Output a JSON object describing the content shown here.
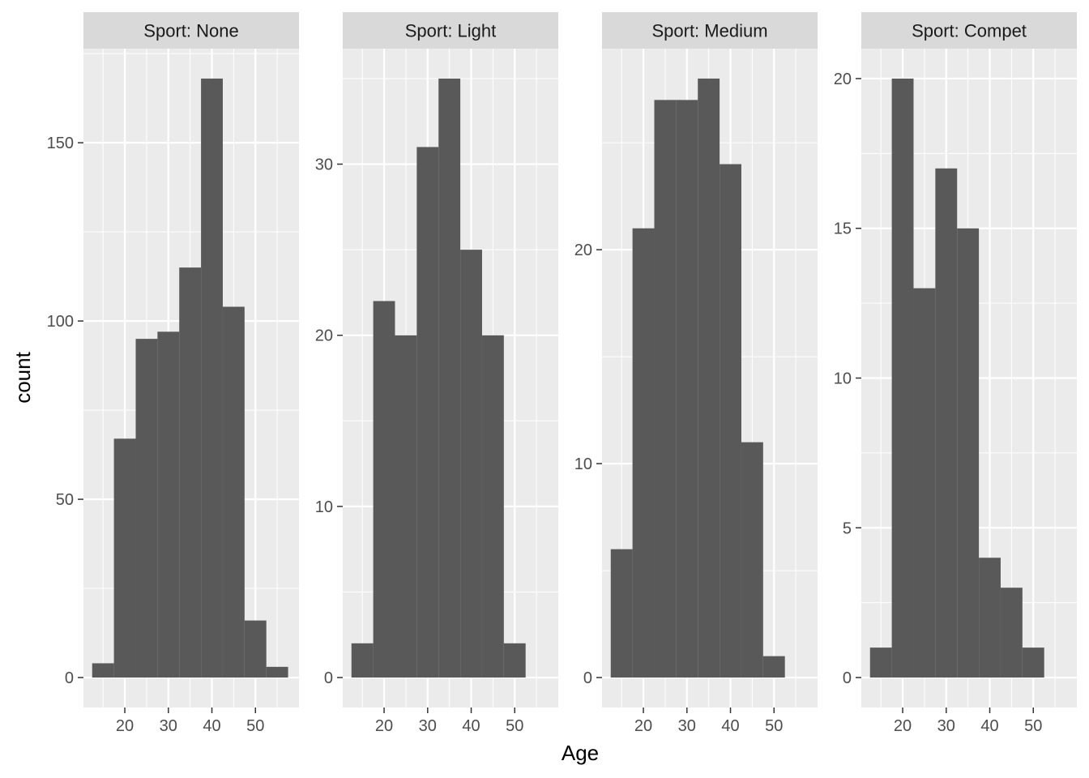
{
  "chart_data": {
    "type": "bar",
    "subtype": "histogram",
    "xlabel": "Age",
    "ylabel": "count",
    "bin_width": 5,
    "x_ticks": [
      20,
      30,
      40,
      50
    ],
    "x_range": [
      10.5,
      60
    ],
    "colors": {
      "bar": "#595959",
      "panel": "#ebebeb",
      "strip": "#d9d9d9",
      "grid": "#ffffff"
    },
    "panels": [
      {
        "strip_label": "Sport: None",
        "y_range": [
          -8.4,
          176.4
        ],
        "y_ticks": [
          0,
          50,
          100,
          150
        ],
        "bins": [
          12.5,
          17.5,
          22.5,
          27.5,
          32.5,
          37.5,
          42.5,
          47.5,
          52.5,
          57.5
        ],
        "counts": [
          4,
          67,
          95,
          97,
          115,
          168,
          104,
          16,
          3
        ]
      },
      {
        "strip_label": "Sport: Light",
        "y_range": [
          -1.75,
          36.75
        ],
        "y_ticks": [
          0,
          10,
          20,
          30
        ],
        "bins": [
          12.5,
          17.5,
          22.5,
          27.5,
          32.5,
          37.5,
          42.5,
          47.5,
          52.5
        ],
        "counts": [
          2,
          22,
          20,
          31,
          35,
          25,
          20,
          2
        ]
      },
      {
        "strip_label": "Sport: Medium",
        "y_range": [
          -1.4,
          29.4
        ],
        "y_ticks": [
          0,
          10,
          20
        ],
        "bins": [
          12.5,
          17.5,
          22.5,
          27.5,
          32.5,
          37.5,
          42.5,
          47.5,
          52.5
        ],
        "counts": [
          6,
          21,
          27,
          27,
          28,
          24,
          11,
          1
        ]
      },
      {
        "strip_label": "Sport: Compet",
        "y_range": [
          -1,
          21
        ],
        "y_ticks": [
          0,
          5,
          10,
          15,
          20
        ],
        "bins": [
          12.5,
          17.5,
          22.5,
          27.5,
          32.5,
          37.5,
          42.5,
          47.5,
          52.5
        ],
        "counts": [
          1,
          20,
          13,
          17,
          15,
          4,
          3,
          1
        ]
      }
    ]
  }
}
